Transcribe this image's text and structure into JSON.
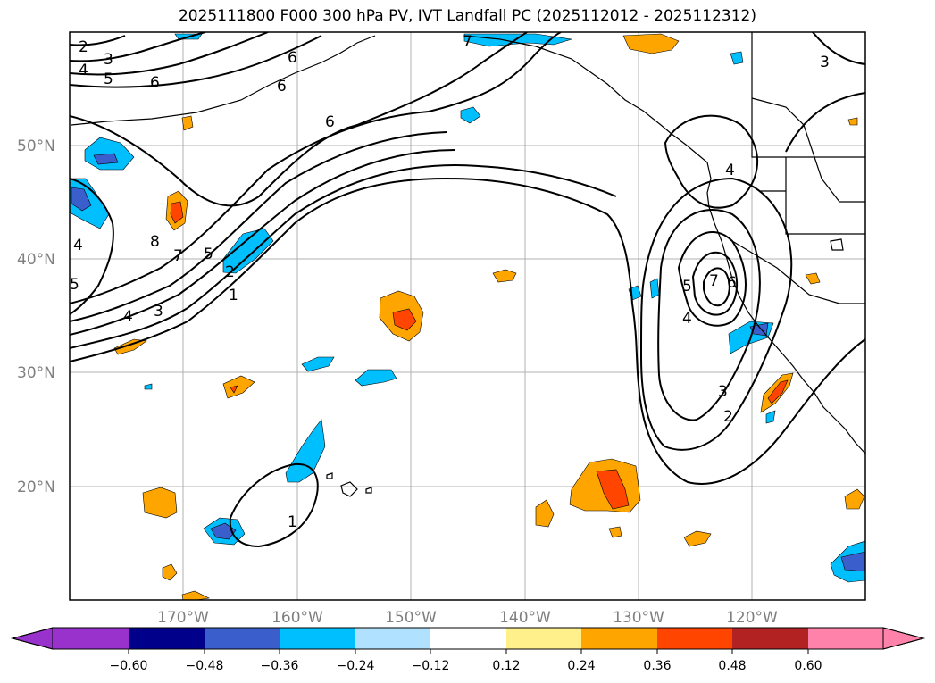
{
  "title": "2025111800 F000 300 hPa PV, IVT Landfall PC (2025112012 - 2025112312)",
  "map": {
    "lat_ticks": [
      "50°N",
      "40°N",
      "30°N",
      "20°N"
    ],
    "lon_ticks": [
      "170°W",
      "160°W",
      "150°W",
      "140°W",
      "130°W",
      "120°W"
    ],
    "gridlines": true
  },
  "colorbar": {
    "ticks": [
      "−0.60",
      "−0.48",
      "−0.36",
      "−0.24",
      "−0.12",
      "0.12",
      "0.24",
      "0.36",
      "0.48",
      "0.60"
    ],
    "colors": [
      "#9932cc",
      "#00008b",
      "#3a5fcd",
      "#00bfff",
      "#b0e2ff",
      "#ffffff",
      "#fff08b",
      "#ffa500",
      "#ff4500",
      "#b22222",
      "#ff82ab"
    ],
    "extend": "both"
  },
  "contour_labels": {
    "nw": [
      "2",
      "3",
      "4",
      "5",
      "6",
      "6",
      "6",
      "6",
      "7"
    ],
    "west": [
      "4",
      "5",
      "4",
      "3",
      "1",
      "2",
      "5",
      "7",
      "8"
    ],
    "east": [
      "3",
      "4",
      "5",
      "6",
      "4",
      "3",
      "2",
      "7"
    ],
    "hawaii": [
      "1"
    ]
  },
  "colors": {
    "warm_fill": "#ffa500",
    "hot_fill": "#ff4500",
    "cold_fill": "#00bfff",
    "deep_cold_fill": "#3a5fcd"
  }
}
